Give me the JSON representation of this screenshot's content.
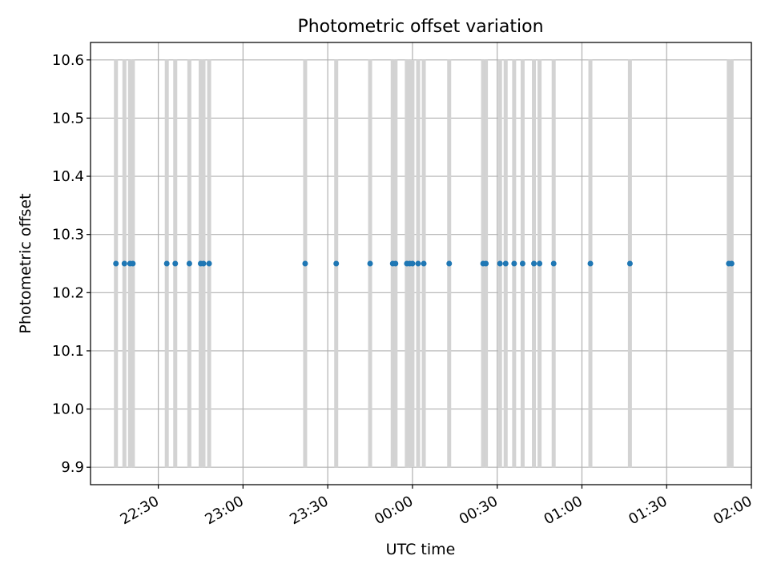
{
  "chart_data": {
    "type": "scatter",
    "title": "Photometric offset variation",
    "xlabel": "UTC time",
    "ylabel": "Photometric offset",
    "xlim": [
      "22:06",
      "02:00"
    ],
    "ylim": [
      9.87,
      10.63
    ],
    "x_ticks": [
      "22:30",
      "23:00",
      "23:30",
      "00:00",
      "00:30",
      "01:00",
      "01:30",
      "02:00"
    ],
    "y_ticks": [
      9.9,
      10.0,
      10.1,
      10.2,
      10.3,
      10.4,
      10.5,
      10.6
    ],
    "grid": true,
    "series": [
      {
        "x": [
          "22:15",
          "22:18",
          "22:20",
          "22:21",
          "22:33",
          "22:36",
          "22:41",
          "22:45",
          "22:46",
          "22:48",
          "23:22",
          "23:33",
          "23:45",
          "23:53",
          "23:54",
          "23:58",
          "23:59",
          "24:00",
          "24:02",
          "24:04",
          "24:13",
          "24:25",
          "24:26",
          "24:31",
          "24:33",
          "24:36",
          "24:39",
          "24:43",
          "24:45",
          "24:50",
          "25:03",
          "25:17",
          "25:52",
          "25:53"
        ],
        "y": [
          10.25,
          10.25,
          10.25,
          10.25,
          10.25,
          10.25,
          10.25,
          10.25,
          10.25,
          10.25,
          10.25,
          10.25,
          10.25,
          10.25,
          10.25,
          10.25,
          10.25,
          10.25,
          10.25,
          10.25,
          10.25,
          10.25,
          10.25,
          10.25,
          10.25,
          10.25,
          10.25,
          10.25,
          10.25,
          10.25,
          10.25,
          10.25,
          10.25,
          10.25
        ],
        "yerr_range": [
          9.9,
          10.6
        ]
      }
    ]
  },
  "colors": {
    "points": "#1f77b4",
    "error_bars": "#d3d3d3",
    "grid": "#b0b0b0",
    "axes": "#000000"
  }
}
